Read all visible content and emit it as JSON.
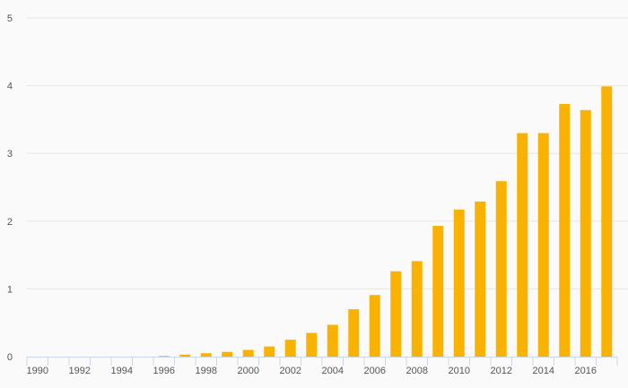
{
  "chart_data": {
    "type": "bar",
    "title": "",
    "xlabel": "",
    "ylabel": "",
    "categories": [
      "1990",
      "1991",
      "1992",
      "1993",
      "1994",
      "1995",
      "1996",
      "1997",
      "1998",
      "1999",
      "2000",
      "2001",
      "2002",
      "2003",
      "2004",
      "2005",
      "2006",
      "2007",
      "2008",
      "2009",
      "2010",
      "2011",
      "2012",
      "2013",
      "2014",
      "2015",
      "2016",
      "2017"
    ],
    "values": [
      0,
      0,
      0,
      0,
      0,
      0,
      0.01,
      0.03,
      0.05,
      0.07,
      0.1,
      0.15,
      0.25,
      0.35,
      0.47,
      0.7,
      0.91,
      1.26,
      1.41,
      1.93,
      2.17,
      2.29,
      2.59,
      3.3,
      3.3,
      3.73,
      3.64,
      3.99
    ],
    "x_tick_labels": [
      "1990",
      "1992",
      "1994",
      "1996",
      "1998",
      "2000",
      "2002",
      "2004",
      "2006",
      "2008",
      "2010",
      "2012",
      "2014",
      "2016"
    ],
    "y_ticks": [
      "0",
      "1",
      "2",
      "3",
      "4",
      "5"
    ],
    "ylim": [
      0,
      5
    ],
    "grid": true,
    "legend": false,
    "colors": {
      "bar": "#f9b200",
      "grid": "#e6e6e6",
      "axis": "#ccd6eb",
      "background": "#fafafa"
    }
  }
}
